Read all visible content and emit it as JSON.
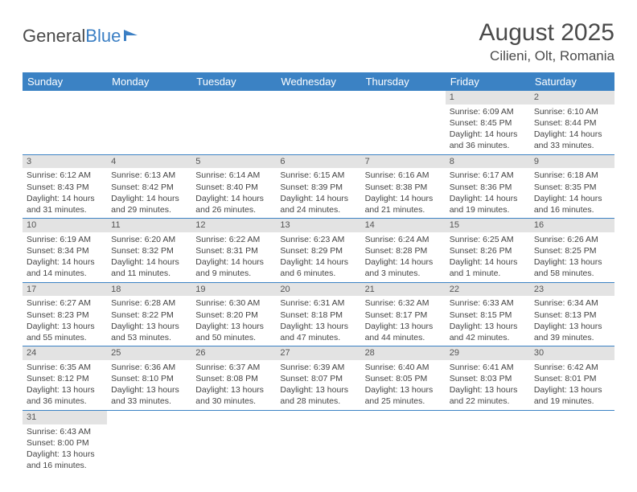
{
  "logo": {
    "text1": "General",
    "text2": "Blue"
  },
  "title": "August 2025",
  "location": "Cilieni, Olt, Romania",
  "colors": {
    "header_bg": "#3b82c4",
    "header_text": "#ffffff",
    "daynum_bg": "#e3e3e3",
    "row_border": "#3b82c4",
    "body_text": "#444444",
    "title_text": "#4a4a4a"
  },
  "fonts": {
    "title_size_pt": 30,
    "location_size_pt": 17,
    "weekday_size_pt": 13,
    "cell_size_pt": 10.5
  },
  "weekdays": [
    "Sunday",
    "Monday",
    "Tuesday",
    "Wednesday",
    "Thursday",
    "Friday",
    "Saturday"
  ],
  "weeks": [
    [
      null,
      null,
      null,
      null,
      null,
      {
        "n": "1",
        "sunrise": "Sunrise: 6:09 AM",
        "sunset": "Sunset: 8:45 PM",
        "daylight": "Daylight: 14 hours and 36 minutes."
      },
      {
        "n": "2",
        "sunrise": "Sunrise: 6:10 AM",
        "sunset": "Sunset: 8:44 PM",
        "daylight": "Daylight: 14 hours and 33 minutes."
      }
    ],
    [
      {
        "n": "3",
        "sunrise": "Sunrise: 6:12 AM",
        "sunset": "Sunset: 8:43 PM",
        "daylight": "Daylight: 14 hours and 31 minutes."
      },
      {
        "n": "4",
        "sunrise": "Sunrise: 6:13 AM",
        "sunset": "Sunset: 8:42 PM",
        "daylight": "Daylight: 14 hours and 29 minutes."
      },
      {
        "n": "5",
        "sunrise": "Sunrise: 6:14 AM",
        "sunset": "Sunset: 8:40 PM",
        "daylight": "Daylight: 14 hours and 26 minutes."
      },
      {
        "n": "6",
        "sunrise": "Sunrise: 6:15 AM",
        "sunset": "Sunset: 8:39 PM",
        "daylight": "Daylight: 14 hours and 24 minutes."
      },
      {
        "n": "7",
        "sunrise": "Sunrise: 6:16 AM",
        "sunset": "Sunset: 8:38 PM",
        "daylight": "Daylight: 14 hours and 21 minutes."
      },
      {
        "n": "8",
        "sunrise": "Sunrise: 6:17 AM",
        "sunset": "Sunset: 8:36 PM",
        "daylight": "Daylight: 14 hours and 19 minutes."
      },
      {
        "n": "9",
        "sunrise": "Sunrise: 6:18 AM",
        "sunset": "Sunset: 8:35 PM",
        "daylight": "Daylight: 14 hours and 16 minutes."
      }
    ],
    [
      {
        "n": "10",
        "sunrise": "Sunrise: 6:19 AM",
        "sunset": "Sunset: 8:34 PM",
        "daylight": "Daylight: 14 hours and 14 minutes."
      },
      {
        "n": "11",
        "sunrise": "Sunrise: 6:20 AM",
        "sunset": "Sunset: 8:32 PM",
        "daylight": "Daylight: 14 hours and 11 minutes."
      },
      {
        "n": "12",
        "sunrise": "Sunrise: 6:22 AM",
        "sunset": "Sunset: 8:31 PM",
        "daylight": "Daylight: 14 hours and 9 minutes."
      },
      {
        "n": "13",
        "sunrise": "Sunrise: 6:23 AM",
        "sunset": "Sunset: 8:29 PM",
        "daylight": "Daylight: 14 hours and 6 minutes."
      },
      {
        "n": "14",
        "sunrise": "Sunrise: 6:24 AM",
        "sunset": "Sunset: 8:28 PM",
        "daylight": "Daylight: 14 hours and 3 minutes."
      },
      {
        "n": "15",
        "sunrise": "Sunrise: 6:25 AM",
        "sunset": "Sunset: 8:26 PM",
        "daylight": "Daylight: 14 hours and 1 minute."
      },
      {
        "n": "16",
        "sunrise": "Sunrise: 6:26 AM",
        "sunset": "Sunset: 8:25 PM",
        "daylight": "Daylight: 13 hours and 58 minutes."
      }
    ],
    [
      {
        "n": "17",
        "sunrise": "Sunrise: 6:27 AM",
        "sunset": "Sunset: 8:23 PM",
        "daylight": "Daylight: 13 hours and 55 minutes."
      },
      {
        "n": "18",
        "sunrise": "Sunrise: 6:28 AM",
        "sunset": "Sunset: 8:22 PM",
        "daylight": "Daylight: 13 hours and 53 minutes."
      },
      {
        "n": "19",
        "sunrise": "Sunrise: 6:30 AM",
        "sunset": "Sunset: 8:20 PM",
        "daylight": "Daylight: 13 hours and 50 minutes."
      },
      {
        "n": "20",
        "sunrise": "Sunrise: 6:31 AM",
        "sunset": "Sunset: 8:18 PM",
        "daylight": "Daylight: 13 hours and 47 minutes."
      },
      {
        "n": "21",
        "sunrise": "Sunrise: 6:32 AM",
        "sunset": "Sunset: 8:17 PM",
        "daylight": "Daylight: 13 hours and 44 minutes."
      },
      {
        "n": "22",
        "sunrise": "Sunrise: 6:33 AM",
        "sunset": "Sunset: 8:15 PM",
        "daylight": "Daylight: 13 hours and 42 minutes."
      },
      {
        "n": "23",
        "sunrise": "Sunrise: 6:34 AM",
        "sunset": "Sunset: 8:13 PM",
        "daylight": "Daylight: 13 hours and 39 minutes."
      }
    ],
    [
      {
        "n": "24",
        "sunrise": "Sunrise: 6:35 AM",
        "sunset": "Sunset: 8:12 PM",
        "daylight": "Daylight: 13 hours and 36 minutes."
      },
      {
        "n": "25",
        "sunrise": "Sunrise: 6:36 AM",
        "sunset": "Sunset: 8:10 PM",
        "daylight": "Daylight: 13 hours and 33 minutes."
      },
      {
        "n": "26",
        "sunrise": "Sunrise: 6:37 AM",
        "sunset": "Sunset: 8:08 PM",
        "daylight": "Daylight: 13 hours and 30 minutes."
      },
      {
        "n": "27",
        "sunrise": "Sunrise: 6:39 AM",
        "sunset": "Sunset: 8:07 PM",
        "daylight": "Daylight: 13 hours and 28 minutes."
      },
      {
        "n": "28",
        "sunrise": "Sunrise: 6:40 AM",
        "sunset": "Sunset: 8:05 PM",
        "daylight": "Daylight: 13 hours and 25 minutes."
      },
      {
        "n": "29",
        "sunrise": "Sunrise: 6:41 AM",
        "sunset": "Sunset: 8:03 PM",
        "daylight": "Daylight: 13 hours and 22 minutes."
      },
      {
        "n": "30",
        "sunrise": "Sunrise: 6:42 AM",
        "sunset": "Sunset: 8:01 PM",
        "daylight": "Daylight: 13 hours and 19 minutes."
      }
    ],
    [
      {
        "n": "31",
        "sunrise": "Sunrise: 6:43 AM",
        "sunset": "Sunset: 8:00 PM",
        "daylight": "Daylight: 13 hours and 16 minutes."
      },
      null,
      null,
      null,
      null,
      null,
      null
    ]
  ]
}
